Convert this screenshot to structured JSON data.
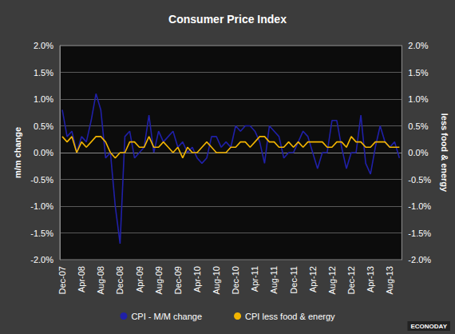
{
  "chart_data": {
    "type": "line",
    "title": "Consumer Price Index",
    "y_label": "m/m change",
    "y2_label": "less food & energy",
    "annotations": [
      "ECONODAY"
    ],
    "categories": [
      "Dec-07",
      null,
      null,
      null,
      "Apr-08",
      null,
      null,
      null,
      "Aug-08",
      null,
      null,
      null,
      "Dec-08",
      null,
      null,
      null,
      "Apr-09",
      null,
      null,
      null,
      "Aug-09",
      null,
      null,
      null,
      "Dec-09",
      null,
      null,
      null,
      "Apr-10",
      null,
      null,
      null,
      "Aug-10",
      null,
      null,
      null,
      "Dec-10",
      null,
      null,
      null,
      "Apr-11",
      null,
      null,
      null,
      "Aug-11",
      null,
      null,
      null,
      "Dec-11",
      null,
      null,
      null,
      "Apr-12",
      null,
      null,
      null,
      "Aug-12",
      null,
      null,
      null,
      "Dec-12",
      null,
      null,
      null,
      "Apr-13",
      null,
      null,
      null,
      "Aug-13",
      null,
      null
    ],
    "series": [
      {
        "name": "CPI - M/M change",
        "color": "#2020a8",
        "axis": "y",
        "values": [
          0.8,
          0.3,
          0.4,
          0.0,
          0.3,
          0.2,
          0.6,
          1.1,
          0.8,
          -0.1,
          0.0,
          -1.0,
          -1.7,
          0.3,
          0.4,
          -0.1,
          0.0,
          0.1,
          0.7,
          0.0,
          0.4,
          0.2,
          0.3,
          0.4,
          0.1,
          0.2,
          0.0,
          0.1,
          -0.1,
          -0.2,
          -0.1,
          0.3,
          0.3,
          0.1,
          0.2,
          0.1,
          0.5,
          0.4,
          0.5,
          0.5,
          0.4,
          0.2,
          -0.2,
          0.5,
          0.4,
          0.3,
          -0.1,
          0.0,
          0.0,
          0.2,
          0.4,
          0.3,
          0.0,
          -0.3,
          0.0,
          0.0,
          0.6,
          0.6,
          0.1,
          -0.3,
          0.0,
          0.0,
          0.7,
          -0.2,
          -0.4,
          0.1,
          0.5,
          0.2,
          0.1,
          0.2,
          -0.1
        ]
      },
      {
        "name": "CPI less food & energy",
        "color": "#f2b400",
        "axis": "y2",
        "values": [
          0.3,
          0.2,
          0.3,
          0.0,
          0.2,
          0.1,
          0.2,
          0.3,
          0.3,
          0.2,
          0.0,
          -0.1,
          0.0,
          0.0,
          0.2,
          0.2,
          0.1,
          0.1,
          0.3,
          0.1,
          0.1,
          0.2,
          0.1,
          0.0,
          0.1,
          -0.1,
          0.1,
          0.0,
          0.0,
          0.1,
          0.2,
          0.1,
          0.0,
          0.0,
          0.0,
          0.1,
          0.1,
          0.2,
          0.2,
          0.1,
          0.2,
          0.3,
          0.3,
          0.2,
          0.2,
          0.1,
          0.1,
          0.2,
          0.1,
          0.2,
          0.1,
          0.2,
          0.2,
          0.2,
          0.2,
          0.1,
          0.1,
          0.2,
          0.2,
          0.1,
          0.3,
          0.2,
          0.2,
          0.1,
          0.1,
          0.2,
          0.2,
          0.2,
          0.1,
          0.1,
          0.1
        ]
      }
    ],
    "ylim": [
      -2,
      2
    ],
    "yticks": [
      {
        "value": -2,
        "label": "-2.0%"
      },
      {
        "value": -1.5,
        "label": "-1.5%"
      },
      {
        "value": -1,
        "label": "-1.0%"
      },
      {
        "value": -0.5,
        "label": "-0.5%"
      },
      {
        "value": 0,
        "label": "0.0%"
      },
      {
        "value": 0.5,
        "label": "0.5%"
      },
      {
        "value": 1,
        "label": "1.0%"
      },
      {
        "value": 1.5,
        "label": "1.5%"
      },
      {
        "value": 2,
        "label": "2.0%"
      }
    ],
    "y2lim": [
      -2,
      2
    ],
    "y2ticks": [
      {
        "value": -2,
        "label": "-2.0%"
      },
      {
        "value": -1.5,
        "label": "-1.5%"
      },
      {
        "value": -1,
        "label": "-1.0%"
      },
      {
        "value": -0.5,
        "label": "-0.5%"
      },
      {
        "value": 0,
        "label": "0.0%"
      },
      {
        "value": 0.5,
        "label": "0.5%"
      },
      {
        "value": 1,
        "label": "1.0%"
      },
      {
        "value": 1.5,
        "label": "1.5%"
      },
      {
        "value": 2,
        "label": "2.0%"
      }
    ],
    "grid": true,
    "legend": "bottom"
  }
}
